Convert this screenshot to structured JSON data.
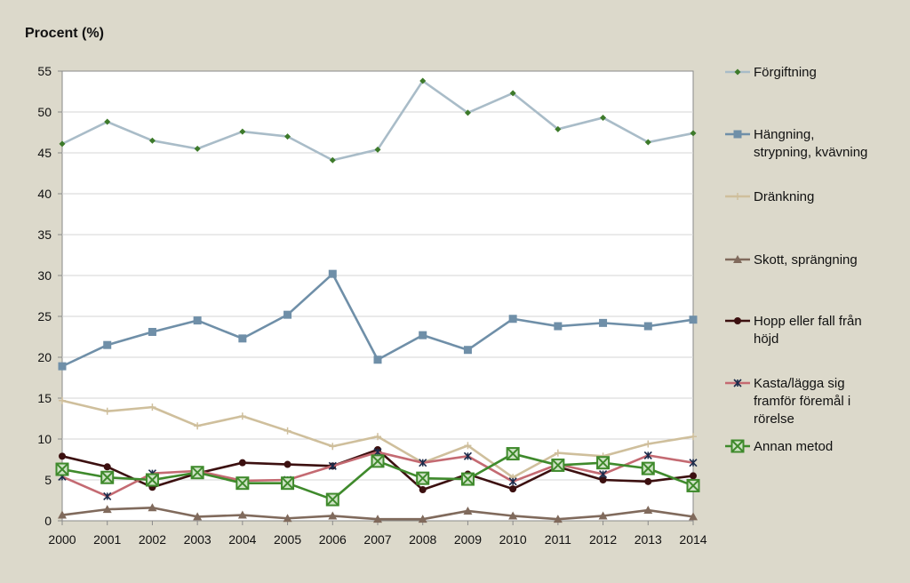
{
  "chart_data": {
    "type": "line",
    "ylabel": "Procent (%)",
    "xlabel": "",
    "ylim": [
      0,
      55
    ],
    "yticks": [
      "0",
      "5",
      "10",
      "15",
      "20",
      "25",
      "30",
      "35",
      "40",
      "45",
      "50",
      "55"
    ],
    "categories": [
      "2000",
      "2001",
      "2002",
      "2003",
      "2004",
      "2005",
      "2006",
      "2007",
      "2008",
      "2009",
      "2010",
      "2011",
      "2012",
      "2013",
      "2014"
    ],
    "grid": "horizontal",
    "legend": "right",
    "series": [
      {
        "name": "Förgiftning",
        "color": "#a9bcc8",
        "marker": "diamond",
        "marker_color": "#3d7a2a",
        "values": [
          46.1,
          48.8,
          46.5,
          45.5,
          47.6,
          47.0,
          44.1,
          45.4,
          53.8,
          49.9,
          52.3,
          47.9,
          49.3,
          46.3,
          47.4
        ]
      },
      {
        "name": "Hängning, strypning, kvävning",
        "color": "#6f8fa8",
        "marker": "square",
        "marker_color": "#6f8fa8",
        "values": [
          18.9,
          21.5,
          23.1,
          24.5,
          22.3,
          25.2,
          30.2,
          19.7,
          22.7,
          20.9,
          24.7,
          23.8,
          24.2,
          23.8,
          24.6
        ]
      },
      {
        "name": "Dränkning",
        "color": "#cfbf9c",
        "marker": "plus",
        "marker_color": "#cfbf9c",
        "values": [
          14.7,
          13.4,
          13.9,
          11.6,
          12.8,
          11.0,
          9.1,
          10.3,
          7.1,
          9.2,
          5.3,
          8.3,
          7.9,
          9.4,
          10.3
        ]
      },
      {
        "name": "Skott, sprängning",
        "color": "#806a5c",
        "marker": "triangle",
        "marker_color": "#806a5c",
        "values": [
          0.7,
          1.4,
          1.6,
          0.5,
          0.7,
          0.3,
          0.6,
          0.2,
          0.2,
          1.2,
          0.6,
          0.2,
          0.6,
          1.3,
          0.5
        ]
      },
      {
        "name": "Hopp eller fall från höjd",
        "color": "#3c1010",
        "marker": "circle",
        "marker_color": "#3c1010",
        "values": [
          7.9,
          6.6,
          4.1,
          5.8,
          7.1,
          6.9,
          6.7,
          8.7,
          3.8,
          5.7,
          3.9,
          6.6,
          5.0,
          4.8,
          5.5
        ]
      },
      {
        "name": "Kasta/lägga sig framför föremål i rörelse",
        "color": "#c46a72",
        "marker": "asterisk",
        "marker_color": "#1c2a4a",
        "values": [
          5.4,
          3.0,
          5.8,
          6.1,
          4.9,
          5.0,
          6.7,
          8.4,
          7.1,
          7.9,
          4.8,
          6.9,
          5.7,
          8.0,
          7.1
        ]
      },
      {
        "name": "Annan metod",
        "color": "#3f8a2c",
        "marker": "boxx",
        "marker_color": "#3f8a2c",
        "values": [
          6.3,
          5.3,
          5.0,
          5.9,
          4.6,
          4.6,
          2.6,
          7.3,
          5.2,
          5.1,
          8.2,
          6.8,
          7.1,
          6.4,
          4.3
        ]
      }
    ]
  }
}
